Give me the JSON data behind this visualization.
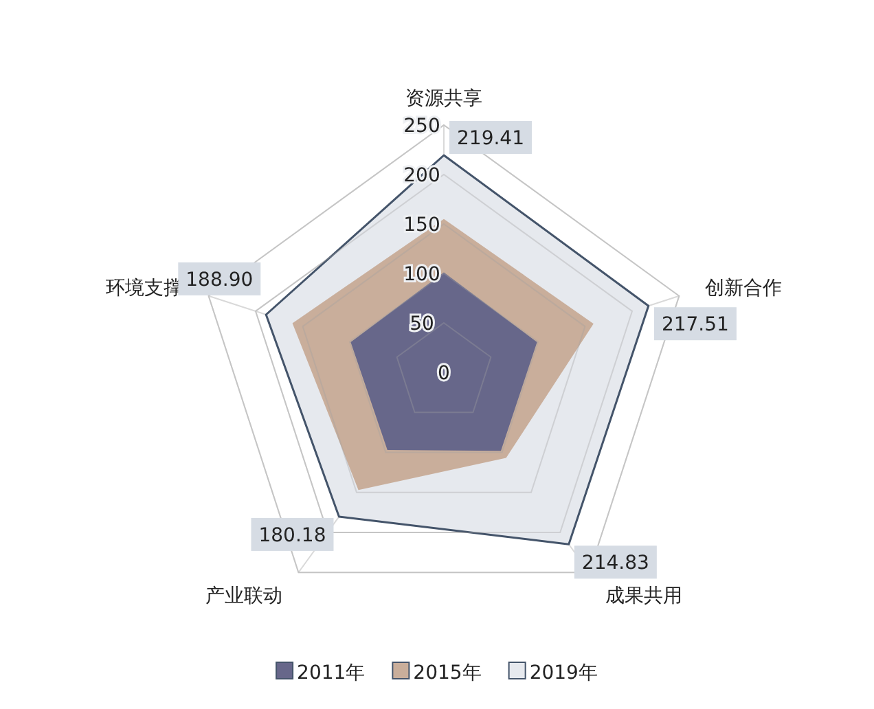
{
  "chart_data": {
    "type": "radar",
    "categories": [
      "资源共享",
      "创新合作",
      "成果共用",
      "产业联动",
      "环境支撑"
    ],
    "ylim": [
      0,
      250
    ],
    "yticks": [
      0,
      50,
      100,
      150,
      200,
      250
    ],
    "grid": true,
    "legend": "bottom",
    "series": [
      {
        "name": "2011年",
        "color": "#67678a",
        "values": [
          101,
          99,
          98,
          97,
          99
        ]
      },
      {
        "name": "2015年",
        "color": "#c9ae9b",
        "values": [
          155,
          159,
          107,
          147,
          161
        ]
      },
      {
        "name": "2019年",
        "color": "#e6e9ee",
        "values": [
          219.41,
          217.51,
          214.83,
          180.18,
          188.9
        ],
        "value_labels": [
          "219.41",
          "217.51",
          "214.83",
          "180.18",
          "188.90"
        ]
      }
    ]
  }
}
